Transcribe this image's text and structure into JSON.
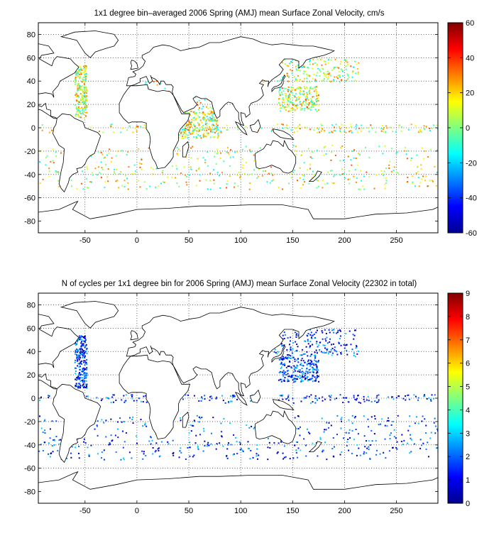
{
  "chart_data": [
    {
      "type": "heatmap",
      "title": "1x1 degree bin–averaged 2006 Spring (AMJ) mean Surface Zonal Velocity, cm/s",
      "xlabel": "",
      "ylabel": "",
      "xlim": [
        -95,
        290
      ],
      "ylim": [
        -90,
        90
      ],
      "x_ticks": [
        -50,
        0,
        50,
        100,
        150,
        200,
        250
      ],
      "y_ticks": [
        80,
        60,
        40,
        20,
        0,
        -20,
        -40,
        -60,
        -80
      ],
      "grid": true,
      "colorbar": {
        "min": -60,
        "max": 60,
        "ticks": [
          60,
          40,
          20,
          0,
          -20,
          -40,
          -60
        ],
        "colormap": "jet"
      }
    },
    {
      "type": "heatmap",
      "title": "N of cycles per 1x1 degree bin for 2006 Spring (AMJ) mean Surface Zonal Velocity (22302 in total)",
      "xlabel": "",
      "ylabel": "",
      "xlim": [
        -95,
        290
      ],
      "ylim": [
        -90,
        90
      ],
      "x_ticks": [
        -50,
        0,
        50,
        100,
        150,
        200,
        250
      ],
      "y_ticks": [
        80,
        60,
        40,
        20,
        0,
        -20,
        -40,
        -60,
        -80
      ],
      "grid": true,
      "colorbar": {
        "min": 0,
        "max": 9,
        "ticks": [
          9,
          8,
          7,
          6,
          5,
          4,
          3,
          2,
          1,
          0
        ],
        "colormap": "jet"
      }
    }
  ]
}
